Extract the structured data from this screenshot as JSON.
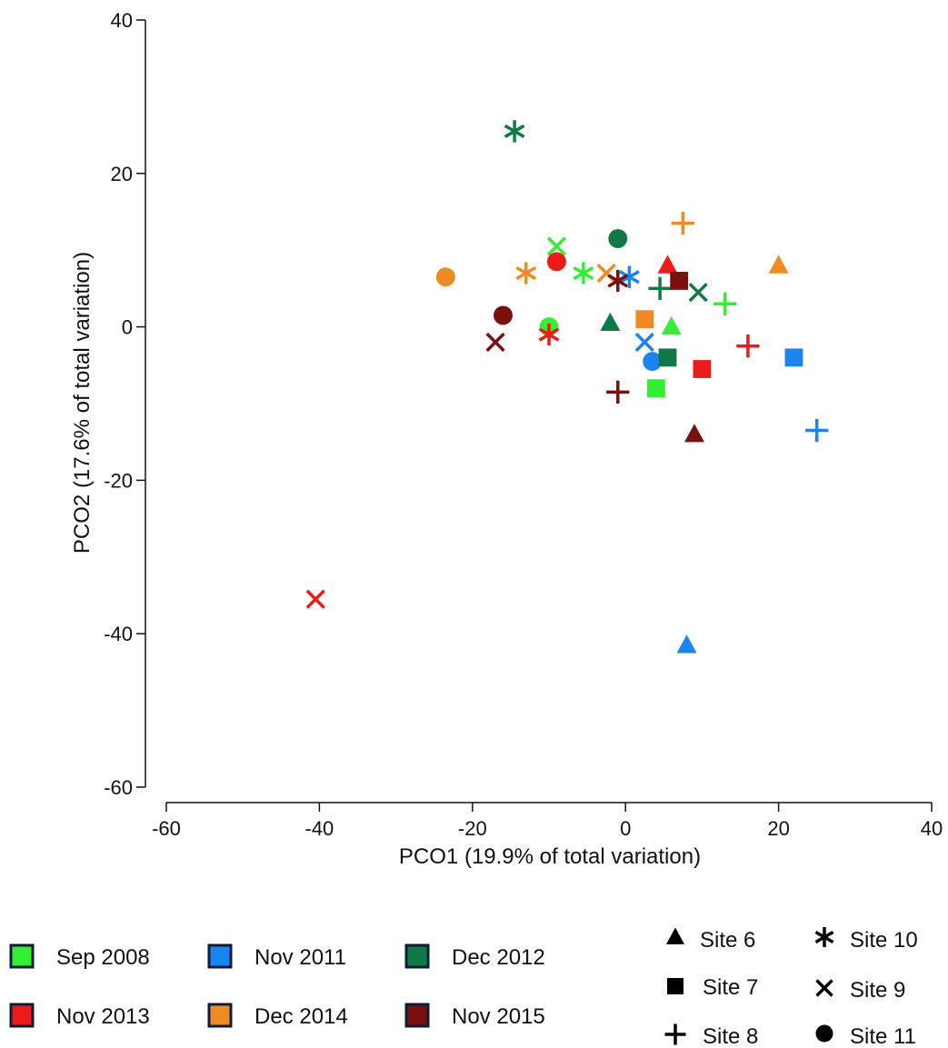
{
  "chart_data": {
    "type": "scatter",
    "title": "",
    "xlabel": "PCO1 (19.9% of total variation)",
    "ylabel": "PCO2 (17.6% of total variation)",
    "xlim": [
      -60,
      40
    ],
    "ylim": [
      -60,
      40
    ],
    "xticks": [
      "-60",
      "-40",
      "-20",
      "0",
      "20",
      "40"
    ],
    "yticks": [
      "40",
      "20",
      "0",
      "-20",
      "-40",
      "-60"
    ],
    "grid": false,
    "color_legend": [
      {
        "label": "Sep 2008",
        "color": "#33ee33"
      },
      {
        "label": "Nov 2011",
        "color": "#1a84f0"
      },
      {
        "label": "Dec 2012",
        "color": "#0f7a45"
      },
      {
        "label": "Nov 2013",
        "color": "#ee1a1a"
      },
      {
        "label": "Dec 2014",
        "color": "#f08a22"
      },
      {
        "label": "Nov 2015",
        "color": "#7a0f0f"
      }
    ],
    "shape_legend": [
      {
        "label": "Site 6",
        "marker": "triangle"
      },
      {
        "label": "Site 7",
        "marker": "square"
      },
      {
        "label": "Site 8",
        "marker": "plus"
      },
      {
        "label": "Site 10",
        "marker": "asterisk"
      },
      {
        "label": "Site 9",
        "marker": "cross"
      },
      {
        "label": "Site 11",
        "marker": "circle"
      }
    ],
    "series": [
      {
        "name": "Sep 2008",
        "color": "#33ee33",
        "points": [
          {
            "site": "Site 6",
            "marker": "triangle",
            "x": 6.0,
            "y": 0.0
          },
          {
            "site": "Site 7",
            "marker": "square",
            "x": 4.0,
            "y": -8.0
          },
          {
            "site": "Site 8",
            "marker": "plus",
            "x": 13.0,
            "y": 3.0
          },
          {
            "site": "Site 10",
            "marker": "asterisk",
            "x": -5.5,
            "y": 7.0
          },
          {
            "site": "Site 9",
            "marker": "cross",
            "x": -9.0,
            "y": 10.5
          },
          {
            "site": "Site 11",
            "marker": "circle",
            "x": -10.0,
            "y": 0.0
          }
        ]
      },
      {
        "name": "Nov 2011",
        "color": "#1a84f0",
        "points": [
          {
            "site": "Site 6",
            "marker": "triangle",
            "x": 8.0,
            "y": -41.5
          },
          {
            "site": "Site 7",
            "marker": "square",
            "x": 22.0,
            "y": -4.0
          },
          {
            "site": "Site 8",
            "marker": "plus",
            "x": 25.0,
            "y": -13.5
          },
          {
            "site": "Site 10",
            "marker": "asterisk",
            "x": 0.5,
            "y": 6.5
          },
          {
            "site": "Site 9",
            "marker": "cross",
            "x": 2.5,
            "y": -2.0
          },
          {
            "site": "Site 11",
            "marker": "circle",
            "x": 3.5,
            "y": -4.5
          }
        ]
      },
      {
        "name": "Dec 2012",
        "color": "#0f7a45",
        "points": [
          {
            "site": "Site 6",
            "marker": "triangle",
            "x": -2.0,
            "y": 0.5
          },
          {
            "site": "Site 7",
            "marker": "square",
            "x": 5.5,
            "y": -4.0
          },
          {
            "site": "Site 8",
            "marker": "plus",
            "x": 4.5,
            "y": 5.0
          },
          {
            "site": "Site 10",
            "marker": "asterisk",
            "x": -14.5,
            "y": 25.5
          },
          {
            "site": "Site 9",
            "marker": "cross",
            "x": 9.5,
            "y": 4.5
          },
          {
            "site": "Site 11",
            "marker": "circle",
            "x": -1.0,
            "y": 11.5
          }
        ]
      },
      {
        "name": "Nov 2013",
        "color": "#ee1a1a",
        "points": [
          {
            "site": "Site 6",
            "marker": "triangle",
            "x": 5.5,
            "y": 8.0
          },
          {
            "site": "Site 7",
            "marker": "square",
            "x": 10.0,
            "y": -5.5
          },
          {
            "site": "Site 8",
            "marker": "plus",
            "x": 16.0,
            "y": -2.5
          },
          {
            "site": "Site 10",
            "marker": "asterisk",
            "x": -10.0,
            "y": -1.0
          },
          {
            "site": "Site 9",
            "marker": "cross",
            "x": -40.5,
            "y": -35.5
          },
          {
            "site": "Site 11",
            "marker": "circle",
            "x": -9.0,
            "y": 8.5
          }
        ]
      },
      {
        "name": "Dec 2014",
        "color": "#f08a22",
        "points": [
          {
            "site": "Site 6",
            "marker": "triangle",
            "x": 20.0,
            "y": 8.0
          },
          {
            "site": "Site 7",
            "marker": "square",
            "x": 2.5,
            "y": 1.0
          },
          {
            "site": "Site 8",
            "marker": "plus",
            "x": 7.5,
            "y": 13.5
          },
          {
            "site": "Site 10",
            "marker": "asterisk",
            "x": -13.0,
            "y": 7.0
          },
          {
            "site": "Site 9",
            "marker": "cross",
            "x": -2.5,
            "y": 7.0
          },
          {
            "site": "Site 11",
            "marker": "circle",
            "x": -23.5,
            "y": 6.5
          }
        ]
      },
      {
        "name": "Nov 2015",
        "color": "#7a0f0f",
        "points": [
          {
            "site": "Site 6",
            "marker": "triangle",
            "x": 9.0,
            "y": -14.0
          },
          {
            "site": "Site 7",
            "marker": "square",
            "x": 7.0,
            "y": 6.0
          },
          {
            "site": "Site 8",
            "marker": "plus",
            "x": -1.0,
            "y": -8.5
          },
          {
            "site": "Site 10",
            "marker": "asterisk",
            "x": -1.0,
            "y": 6.0
          },
          {
            "site": "Site 9",
            "marker": "cross",
            "x": -17.0,
            "y": -2.0
          },
          {
            "site": "Site 11",
            "marker": "circle",
            "x": -16.0,
            "y": 1.5
          }
        ]
      }
    ]
  }
}
